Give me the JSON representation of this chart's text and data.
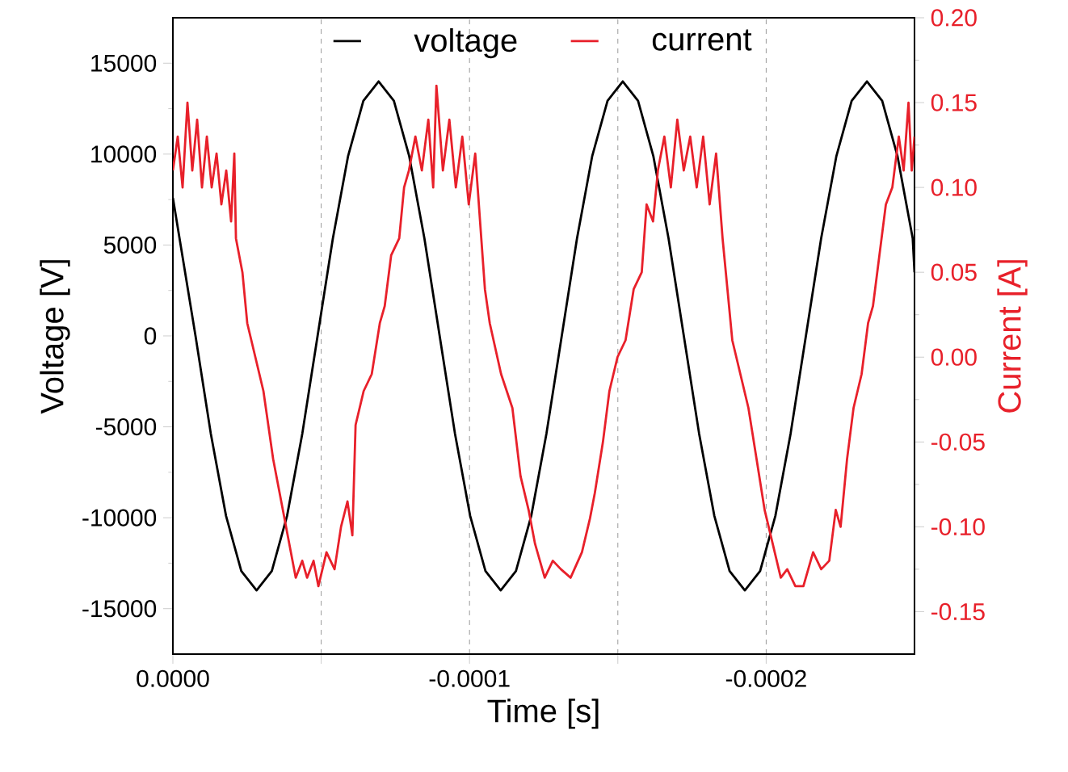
{
  "chart_data": {
    "type": "line",
    "xlabel": "Time [s]",
    "ylabel": "Voltage [V]",
    "y2label": "Current [A]",
    "xlim": [
      0,
      -0.00025
    ],
    "xticks": [
      {
        "value": 0,
        "label": "0.0000"
      },
      {
        "value": -5e-05,
        "label": null
      },
      {
        "value": -0.0001,
        "label": "-0.0001"
      },
      {
        "value": -0.00015,
        "label": null
      },
      {
        "value": -0.0002,
        "label": "-0.0002"
      }
    ],
    "ylim": [
      -17500,
      17500
    ],
    "yticks": [
      -15000,
      -10000,
      -5000,
      0,
      5000,
      10000,
      15000
    ],
    "y2lim": [
      -0.175,
      0.2
    ],
    "y2ticks": [
      {
        "value": -0.15,
        "label": "-0.15"
      },
      {
        "value": -0.1,
        "label": "-0.10"
      },
      {
        "value": -0.05,
        "label": "-0.05"
      },
      {
        "value": 0,
        "label": "0.00"
      },
      {
        "value": 0.05,
        "label": "0.05"
      },
      {
        "value": 0.1,
        "label": "0.10"
      },
      {
        "value": 0.15,
        "label": "0.15"
      },
      {
        "value": 0.2,
        "label": "0.20"
      }
    ],
    "grid": "x",
    "legend": "top",
    "series": [
      {
        "name": "voltage",
        "color": "#000000",
        "x": [
          0,
          -7.63e-06,
          -1.277e-05,
          -1.792e-05,
          -2.306e-05,
          -2.821e-05,
          -3.335e-05,
          -3.849e-05,
          -4.364e-05,
          -4.878e-05,
          -5.393e-05,
          -5.907e-05,
          -6.421e-05,
          -6.936e-05,
          -7.45e-05,
          -7.965e-05,
          -8.479e-05,
          -8.993e-05,
          -9.508e-05,
          -0.00010022,
          -0.00010537,
          -0.00011051,
          -0.00011565,
          -0.0001208,
          -0.00012594,
          -0.00013109,
          -0.00013623,
          -0.00014137,
          -0.00014652,
          -0.00015166,
          -0.00015681,
          -0.00016195,
          -0.00016709,
          -0.00017224,
          -0.00017738,
          -0.00018253,
          -0.00018767,
          -0.00019281,
          -0.00019796,
          -0.0002031,
          -0.00020825,
          -0.00021339,
          -0.00021853,
          -0.00022368,
          -0.00022882,
          -0.00023397,
          -0.00023911,
          -0.00024425,
          -0.0002494,
          -0.00025
        ],
        "values": [
          7600,
          0,
          -5360,
          -9900,
          -12930,
          -14000,
          -12930,
          -9900,
          -5360,
          0,
          5360,
          9900,
          12930,
          14000,
          12930,
          9900,
          5360,
          0,
          -5360,
          -9900,
          -12930,
          -14000,
          -12930,
          -9900,
          -5360,
          0,
          5360,
          9900,
          12930,
          14000,
          12930,
          9900,
          5360,
          0,
          -5360,
          -9900,
          -12930,
          -14000,
          -12930,
          -9900,
          -5360,
          0,
          5360,
          9900,
          12930,
          14000,
          12930,
          9900,
          5360,
          3500
        ]
      },
      {
        "name": "current",
        "color": "#e8202a",
        "axis": "y2",
        "x": [
          0,
          -1.64e-06,
          -3.27e-06,
          -4.91e-06,
          -6.54e-06,
          -8.18e-06,
          -9.81e-06,
          -1.145e-05,
          -1.308e-05,
          -1.472e-05,
          -1.635e-05,
          -1.799e-05,
          -1.962e-05,
          -2.071e-05,
          -2.126e-05,
          -2.344e-05,
          -2.507e-05,
          -2.78e-05,
          -3.052e-05,
          -3.379e-05,
          -3.706e-05,
          -3.924e-05,
          -4.142e-05,
          -4.36e-05,
          -4.524e-05,
          -4.742e-05,
          -4.905e-05,
          -5.178e-05,
          -5.45e-05,
          -5.668e-05,
          -5.886e-05,
          -6.05e-05,
          -6.159e-05,
          -6.431e-05,
          -6.704e-05,
          -6.976e-05,
          -7.14e-05,
          -7.358e-05,
          -7.63e-05,
          -7.794e-05,
          -7.957e-05,
          -8.175e-05,
          -8.393e-05,
          -8.611e-05,
          -8.775e-05,
          -8.884e-05,
          -9.102e-05,
          -9.32e-05,
          -9.538e-05,
          -9.756e-05,
          -9.974e-05,
          -0.00010192,
          -0.00010355,
          -0.00010519,
          -0.00010682,
          -0.00011064,
          -0.00011445,
          -0.00011718,
          -0.0001199,
          -0.00012208,
          -0.00012535,
          -0.00012808,
          -0.0001308,
          -0.00013407,
          -0.00013789,
          -0.00014061,
          -0.00014225,
          -0.00014497,
          -0.00014715,
          -0.00014988,
          -0.0001526,
          -0.00015533,
          -0.00015805,
          -0.00015969,
          -0.00016187,
          -0.0001635,
          -0.00016568,
          -0.00016786,
          -0.00017004,
          -0.00017222,
          -0.0001744,
          -0.00017658,
          -0.00017876,
          -0.00018094,
          -0.00018312,
          -0.0001853,
          -0.00018694,
          -0.00018857,
          -0.0001913,
          -0.00019402,
          -0.00019675,
          -0.00019947,
          -0.0002022,
          -0.00020492,
          -0.0002071,
          -0.00020983,
          -0.00021255,
          -0.00021582,
          -0.00021855,
          -0.00022127,
          -0.00022345,
          -0.00022509,
          -0.00022727,
          -0.00022945,
          -0.00023217,
          -0.00023435,
          -0.00023599,
          -0.00023817,
          -0.00024035,
          -0.00024253,
          -0.00024471,
          -0.00024634,
          -0.00024798,
          -0.00024907,
          -0.00025
        ],
        "values": [
          0.11,
          0.13,
          0.1,
          0.15,
          0.11,
          0.14,
          0.1,
          0.13,
          0.1,
          0.12,
          0.09,
          0.11,
          0.08,
          0.12,
          0.07,
          0.05,
          0.02,
          0.0,
          -0.02,
          -0.06,
          -0.09,
          -0.11,
          -0.13,
          -0.12,
          -0.13,
          -0.12,
          -0.135,
          -0.115,
          -0.125,
          -0.1,
          -0.085,
          -0.105,
          -0.04,
          -0.02,
          -0.01,
          0.02,
          0.03,
          0.06,
          0.07,
          0.1,
          0.11,
          0.13,
          0.11,
          0.14,
          0.1,
          0.16,
          0.11,
          0.14,
          0.1,
          0.13,
          0.09,
          0.12,
          0.08,
          0.04,
          0.02,
          -0.01,
          -0.03,
          -0.07,
          -0.09,
          -0.11,
          -0.13,
          -0.12,
          -0.125,
          -0.13,
          -0.115,
          -0.095,
          -0.08,
          -0.05,
          -0.02,
          0.0,
          0.01,
          0.04,
          0.05,
          0.09,
          0.08,
          0.11,
          0.13,
          0.1,
          0.14,
          0.11,
          0.13,
          0.1,
          0.13,
          0.09,
          0.12,
          0.07,
          0.04,
          0.01,
          -0.01,
          -0.03,
          -0.06,
          -0.09,
          -0.11,
          -0.13,
          -0.125,
          -0.135,
          -0.135,
          -0.115,
          -0.125,
          -0.12,
          -0.09,
          -0.1,
          -0.06,
          -0.03,
          -0.01,
          0.02,
          0.03,
          0.06,
          0.09,
          0.1,
          0.13,
          0.11,
          0.15,
          0.11,
          0.13
        ]
      }
    ]
  }
}
